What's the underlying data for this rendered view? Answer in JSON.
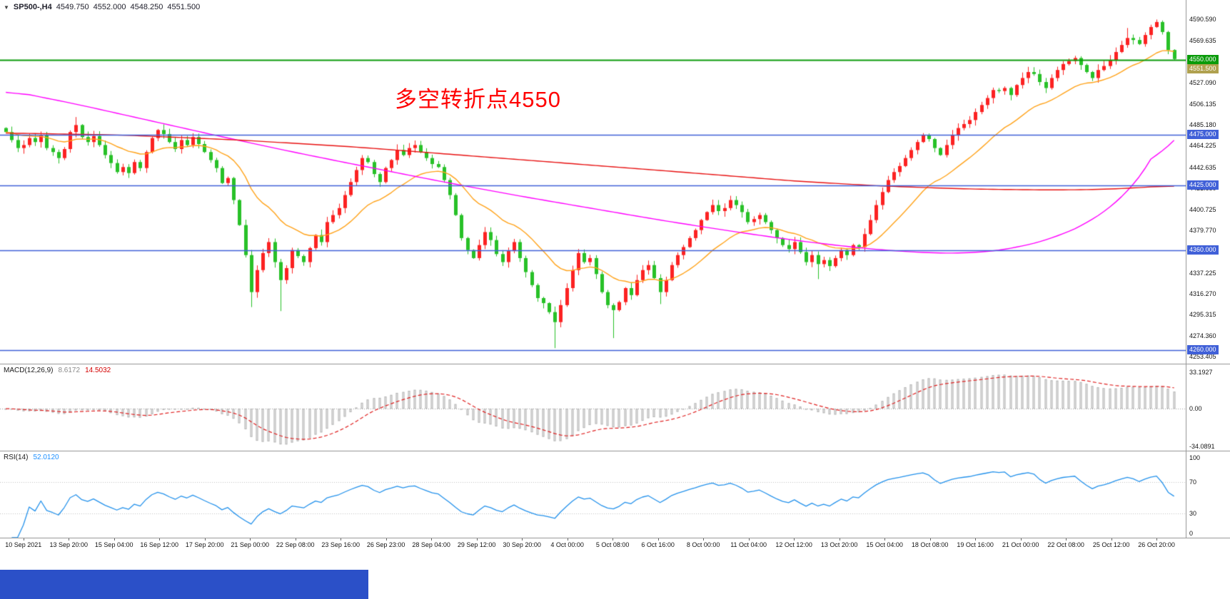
{
  "header": {
    "collapse_icon": "▼",
    "symbol_period": "SP500-,H4",
    "open": "4549.750",
    "high": "4552.000",
    "low": "4548.250",
    "close": "4551.500"
  },
  "taskbar": {
    "color": "#2b50c8"
  },
  "chart_data": {
    "type": "candlestick",
    "symbol": "SP500-",
    "timeframe": "H4",
    "annotation": {
      "text": "多空转折点4550",
      "color": "#ff0000"
    },
    "colors": {
      "up": "#fc2222",
      "down": "#28c128",
      "ma_fast": "#ffa31a",
      "ma_mid": "#ff00ff",
      "ma_slow": "#e81212",
      "level_green": "#0a9b0a",
      "level_blue": "#4060d8",
      "macd_hist_fill": "#ececec",
      "macd_hist_stroke": "#b4b4b4",
      "macd_signal": "#e02222",
      "rsi_line": "#2492ec",
      "bid_label_bg": "#b0a14f",
      "bg": "#ffffff"
    },
    "price_axis": {
      "min": 4250,
      "max": 4610,
      "ticks": [
        "4590.590",
        "4569.635",
        "4548.680",
        "4527.090",
        "4506.135",
        "4485.180",
        "4464.225",
        "4442.635",
        "4421.680",
        "4400.725",
        "4379.770",
        "4358.815",
        "4337.225",
        "4316.270",
        "4295.315",
        "4274.360",
        "4253.405"
      ]
    },
    "levels": [
      {
        "price": 4550.0,
        "label": "4550.000",
        "style": "green"
      },
      {
        "price": 4475.0,
        "label": "4475.000",
        "style": "blue"
      },
      {
        "price": 4425.0,
        "label": "4425.000",
        "style": "blue"
      },
      {
        "price": 4360.0,
        "label": "4360.000",
        "style": "blue"
      },
      {
        "price": 4260.0,
        "label": "4260.000",
        "style": "blue"
      }
    ],
    "bid_label": {
      "price": 4551.5,
      "label": "4551.500"
    },
    "candles": {
      "first_open": 4482,
      "closes": [
        4478,
        4470,
        4462,
        4465,
        4472,
        4468,
        4475,
        4462,
        4458,
        4452,
        4461,
        4478,
        4485,
        4473,
        4468,
        4474,
        4465,
        4455,
        4447,
        4438,
        4443,
        4437,
        4448,
        4442,
        4458,
        4472,
        4480,
        4476,
        4468,
        4461,
        4470,
        4465,
        4473,
        4466,
        4458,
        4450,
        4442,
        4427,
        4432,
        4410,
        4385,
        4355,
        4318,
        4340,
        4357,
        4368,
        4348,
        4330,
        4342,
        4360,
        4354,
        4348,
        4362,
        4375,
        4368,
        4388,
        4395,
        4402,
        4415,
        4428,
        4440,
        4452,
        4448,
        4436,
        4428,
        4442,
        4450,
        4460,
        4455,
        4462,
        4465,
        4458,
        4452,
        4446,
        4443,
        4430,
        4415,
        4395,
        4372,
        4360,
        4352,
        4365,
        4378,
        4370,
        4356,
        4348,
        4359,
        4368,
        4352,
        4338,
        4325,
        4312,
        4307,
        4298,
        4288,
        4305,
        4322,
        4340,
        4357,
        4348,
        4352,
        4336,
        4318,
        4305,
        4300,
        4308,
        4322,
        4315,
        4330,
        4340,
        4345,
        4332,
        4318,
        4330,
        4345,
        4355,
        4363,
        4372,
        4380,
        4390,
        4398,
        4405,
        4399,
        4402,
        4410,
        4405,
        4398,
        4388,
        4391,
        4395,
        4388,
        4380,
        4372,
        4365,
        4361,
        4368,
        4358,
        4348,
        4355,
        4346,
        4350,
        4344,
        4352,
        4360,
        4355,
        4365,
        4363,
        4376,
        4390,
        4405,
        4418,
        4430,
        4438,
        4444,
        4452,
        4460,
        4468,
        4475,
        4471,
        4462,
        4455,
        4465,
        4475,
        4482,
        4486,
        4490,
        4498,
        4505,
        4512,
        4520,
        4519,
        4522,
        4515,
        4525,
        4532,
        4538,
        4536,
        4528,
        4522,
        4532,
        4540,
        4546,
        4549,
        4552,
        4545,
        4538,
        4532,
        4540,
        4544,
        4550,
        4558,
        4565,
        4572,
        4570,
        4566,
        4575,
        4583,
        4588,
        4578,
        4560,
        4551
      ],
      "wick_overrides": {
        "12": {
          "high": 4493
        },
        "42": {
          "low": 4303
        },
        "47": {
          "low": 4299
        },
        "94": {
          "low": 4262
        },
        "104": {
          "low": 4272
        },
        "112": {
          "low": 4306
        },
        "139": {
          "low": 4331
        },
        "192": {
          "high": 4582
        },
        "197": {
          "high": 4590.5
        }
      }
    },
    "moving_averages": {
      "fast": {
        "type": "ema",
        "period": 18
      },
      "mid": {
        "type": "anchors",
        "points": [
          [
            0,
            4520
          ],
          [
            12,
            4506
          ],
          [
            25,
            4489
          ],
          [
            38,
            4472
          ],
          [
            50,
            4457
          ],
          [
            62,
            4443
          ],
          [
            75,
            4428
          ],
          [
            88,
            4414
          ],
          [
            100,
            4402
          ],
          [
            112,
            4390
          ],
          [
            124,
            4379
          ],
          [
            136,
            4369
          ],
          [
            148,
            4361
          ],
          [
            158,
            4357
          ],
          [
            166,
            4357
          ],
          [
            173,
            4362
          ],
          [
            180,
            4373
          ],
          [
            186,
            4389
          ],
          [
            191,
            4411
          ],
          [
            195,
            4437
          ],
          [
            198,
            4467
          ],
          [
            200,
            4496
          ],
          [
            201,
            4509
          ]
        ]
      },
      "slow": {
        "type": "anchors",
        "points": [
          [
            0,
            4477
          ],
          [
            20,
            4475
          ],
          [
            40,
            4470
          ],
          [
            60,
            4463
          ],
          [
            80,
            4454
          ],
          [
            100,
            4445
          ],
          [
            120,
            4436
          ],
          [
            135,
            4429
          ],
          [
            150,
            4424
          ],
          [
            165,
            4421
          ],
          [
            180,
            4420
          ],
          [
            190,
            4421
          ],
          [
            201,
            4425
          ]
        ]
      }
    },
    "time_axis": [
      "10 Sep 2021",
      "13 Sep 20:00",
      "15 Sep 04:00",
      "16 Sep 12:00",
      "17 Sep 20:00",
      "21 Sep 00:00",
      "22 Sep 08:00",
      "23 Sep 16:00",
      "26 Sep 23:00",
      "28 Sep 04:00",
      "29 Sep 12:00",
      "30 Sep 20:00",
      "4 Oct 00:00",
      "5 Oct 08:00",
      "6 Oct 16:00",
      "8 Oct 00:00",
      "11 Oct 04:00",
      "12 Oct 12:00",
      "13 Oct 20:00",
      "15 Oct 04:00",
      "18 Oct 08:00",
      "19 Oct 16:00",
      "21 Oct 00:00",
      "22 Oct 08:00",
      "25 Oct 12:00",
      "26 Oct 20:00"
    ],
    "macd": {
      "label": "MACD(12,26,9)",
      "value_main": "8.6172",
      "value_signal": "14.5032",
      "fast": 12,
      "slow": 26,
      "signal": 9,
      "scale_min": -38,
      "scale_max": 40,
      "axis_ticks": [
        {
          "v": 33.1927,
          "label": "33.1927"
        },
        {
          "v": 0,
          "label": "0.00"
        },
        {
          "v": -34.0891,
          "label": "-34.0891"
        }
      ]
    },
    "rsi": {
      "label": "RSI(14)",
      "value": "52.0120",
      "period": 14,
      "scale_min": 0,
      "scale_max": 108,
      "levels": [
        70,
        30
      ],
      "axis_ticks": [
        {
          "v": 100,
          "label": "100"
        },
        {
          "v": 70,
          "label": "70"
        },
        {
          "v": 30,
          "label": "30"
        },
        {
          "v": 0,
          "label": "0"
        }
      ]
    }
  }
}
